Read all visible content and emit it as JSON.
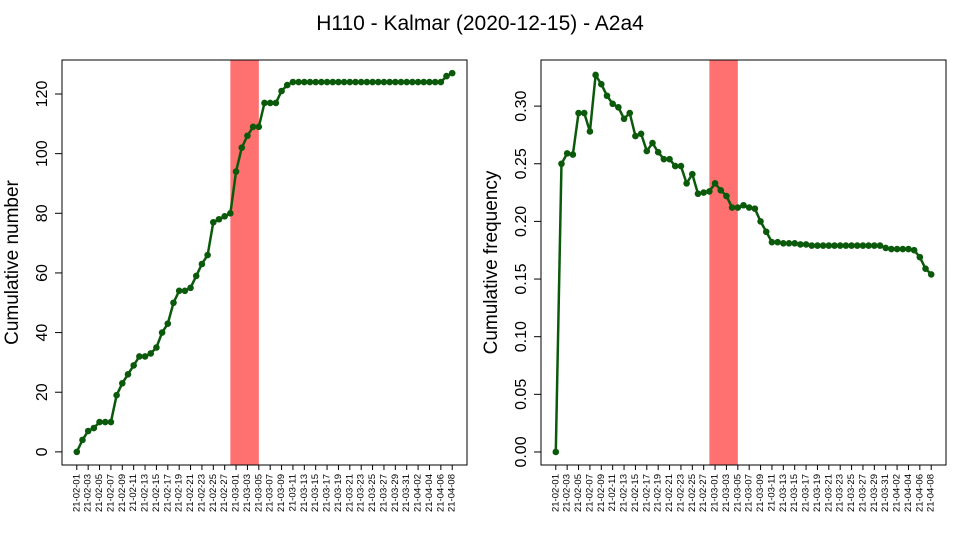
{
  "title": "H110 - Kalmar (2020-12-15) - A2a4",
  "chart_data": [
    {
      "type": "line",
      "ylabel": "Cumulative number",
      "color": "#0b5a0b",
      "highlight_color": "#ff7070",
      "highlight_range": [
        27,
        32
      ],
      "categories": [
        "21-02-01",
        null,
        "21-02-03",
        null,
        "21-02-05",
        null,
        "21-02-07",
        null,
        "21-02-09",
        null,
        "21-02-11",
        null,
        "21-02-13",
        null,
        "21-02-15",
        null,
        "21-02-17",
        null,
        "21-02-19",
        null,
        "21-02-21",
        null,
        "21-02-23",
        null,
        "21-02-25",
        null,
        "21-02-27",
        null,
        "21-03-01",
        null,
        "21-03-03",
        null,
        "21-03-05",
        null,
        "21-03-07",
        null,
        "21-03-09",
        null,
        "21-03-11",
        null,
        "21-03-13",
        null,
        "21-03-15",
        null,
        "21-03-17",
        null,
        "21-03-19",
        null,
        "21-03-21",
        null,
        "21-03-23",
        null,
        "21-03-25",
        null,
        "21-03-27",
        null,
        "21-03-29",
        null,
        "21-03-31",
        null,
        "21-04-02",
        null,
        "21-04-04",
        null,
        "21-04-06",
        null,
        "21-04-08"
      ],
      "values": [
        0,
        4,
        7,
        8,
        10,
        10,
        10,
        19,
        23,
        26,
        29,
        32,
        32,
        33,
        35,
        40,
        43,
        50,
        54,
        54,
        55,
        59,
        63,
        66,
        77,
        78,
        79,
        80,
        94,
        102,
        106,
        109,
        109,
        117,
        117,
        117,
        121,
        123,
        124,
        124,
        124,
        124,
        124,
        124,
        124,
        124,
        124,
        124,
        124,
        124,
        124,
        124,
        124,
        124,
        124,
        124,
        124,
        124,
        124,
        124,
        124,
        124,
        124,
        124,
        124,
        126,
        127
      ],
      "xlim": [
        -2.6,
        68.6
      ],
      "ylim": [
        -4.4,
        131.4
      ],
      "yticks": [
        0,
        20,
        40,
        60,
        80,
        100,
        120
      ]
    },
    {
      "type": "line",
      "ylabel": "Cumulative frequency",
      "color": "#0b5a0b",
      "highlight_color": "#ff7070",
      "highlight_range": [
        27,
        32
      ],
      "categories": [
        "21-02-01",
        null,
        "21-02-03",
        null,
        "21-02-05",
        null,
        "21-02-07",
        null,
        "21-02-09",
        null,
        "21-02-11",
        null,
        "21-02-13",
        null,
        "21-02-15",
        null,
        "21-02-17",
        null,
        "21-02-19",
        null,
        "21-02-21",
        null,
        "21-02-23",
        null,
        "21-02-25",
        null,
        "21-02-27",
        null,
        "21-03-01",
        null,
        "21-03-03",
        null,
        "21-03-05",
        null,
        "21-03-07",
        null,
        "21-03-09",
        null,
        "21-03-11",
        null,
        "21-03-13",
        null,
        "21-03-15",
        null,
        "21-03-17",
        null,
        "21-03-19",
        null,
        "21-03-21",
        null,
        "21-03-23",
        null,
        "21-03-25",
        null,
        "21-03-27",
        null,
        "21-03-29",
        null,
        "21-03-31",
        null,
        "21-04-02",
        null,
        "21-04-04",
        null,
        "21-04-06",
        null,
        "21-04-08"
      ],
      "values": [
        0,
        0.25,
        0.259,
        0.258,
        0.294,
        0.294,
        0.278,
        0.327,
        0.319,
        0.309,
        0.302,
        0.299,
        0.289,
        0.294,
        0.274,
        0.276,
        0.261,
        0.268,
        0.26,
        0.254,
        0.254,
        0.248,
        0.248,
        0.233,
        0.241,
        0.224,
        0.225,
        0.226,
        0.233,
        0.227,
        0.222,
        0.212,
        0.212,
        0.214,
        0.212,
        0.211,
        0.2,
        0.191,
        0.182,
        0.182,
        0.181,
        0.181,
        0.181,
        0.18,
        0.18,
        0.179,
        0.179,
        0.179,
        0.179,
        0.179,
        0.179,
        0.179,
        0.179,
        0.179,
        0.179,
        0.179,
        0.179,
        0.179,
        0.177,
        0.176,
        0.176,
        0.176,
        0.176,
        0.175,
        0.169,
        0.159,
        0.154
      ],
      "xlim": [
        -2.6,
        68.6
      ],
      "ylim": [
        -0.0113,
        0.34
      ],
      "yticks": [
        {
          "value": 0,
          "label": "0.00"
        },
        0.05,
        {
          "value": 0.1,
          "label": "0.10"
        },
        0.15,
        {
          "value": 0.2,
          "label": "0.20"
        },
        0.25,
        {
          "value": 0.3,
          "label": "0.30"
        }
      ]
    }
  ]
}
